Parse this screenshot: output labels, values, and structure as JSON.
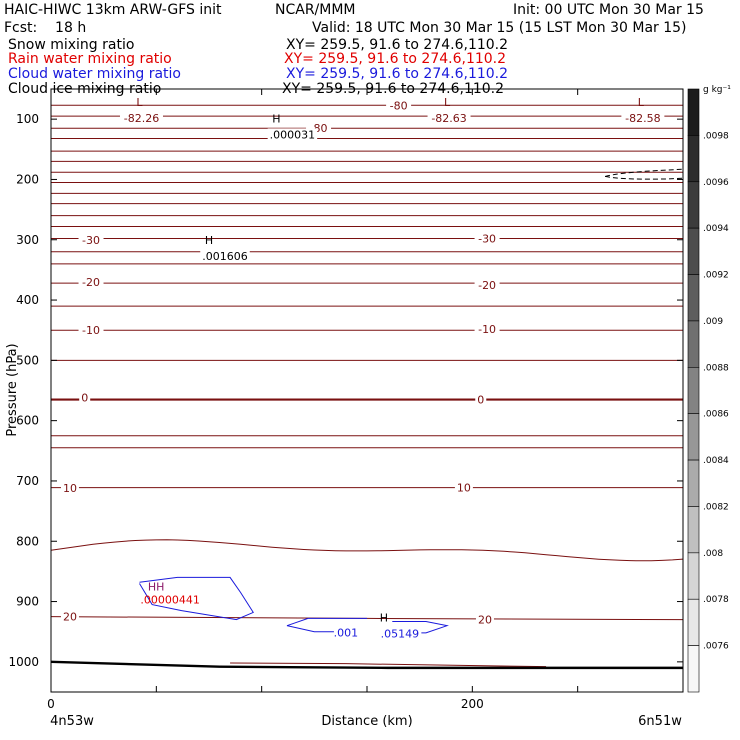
{
  "header": {
    "model": "HAIC-HIWC 13km ARW-GFS init",
    "org": "NCAR/MMM",
    "init": "Init: 00 UTC Mon 30 Mar 15",
    "fcst": "Fcst:    18 h",
    "valid": "Valid: 18 UTC Mon 30 Mar 15 (15 LST Mon 30 Mar 15)"
  },
  "fields": [
    {
      "name": "Snow mixing ratio",
      "xy": "XY= 259.5, 91.6 to 274.6,110.2",
      "color": "#000000"
    },
    {
      "name": "Rain water mixing ratio",
      "xy": "XY= 259.5, 91.6 to 274.6,110.2",
      "color": "#e00000"
    },
    {
      "name": "Cloud water mixing ratio",
      "xy": "XY= 259.5, 91.6 to 274.6,110.2",
      "color": "#1a1adc"
    },
    {
      "name": "Cloud ice mixing ratio",
      "xy": "XY= 259.5, 91.6 to 274.6,110.2",
      "color": "#000000"
    }
  ],
  "chart_data": {
    "type": "contour",
    "xlabel": "Distance (km)",
    "ylabel": "Pressure (hPa)",
    "xlim": [
      0,
      300
    ],
    "ylim": [
      1050,
      50
    ],
    "x_ticks": [
      0,
      200
    ],
    "y_ticks": [
      100,
      200,
      300,
      400,
      500,
      600,
      700,
      800,
      900,
      1000
    ],
    "x_endpoints": {
      "left": "4n53w",
      "right": "6n51w"
    },
    "colorbar": {
      "units": "g kg⁻¹",
      "labels": [
        ".0098",
        ".0096",
        ".0094",
        ".0092",
        ".009",
        ".0088",
        ".0086",
        ".0084",
        ".0082",
        ".008",
        ".0078",
        ".0076"
      ],
      "colors": [
        "#1c1c1c",
        "#2c2c2c",
        "#3c3c3c",
        "#4d4d4d",
        "#5e5e5e",
        "#707070",
        "#838383",
        "#979797",
        "#ababab",
        "#c0c0c0",
        "#d5d5d5",
        "#e8e8e8",
        "#f7f7f7"
      ]
    },
    "colors": {
      "temperature": "#7a1010",
      "cloud_water": "#1a1adc",
      "rain": "#e00000",
      "ground": "#000000"
    },
    "temperature_contour_labels": [
      {
        "text": "-80",
        "x": 127,
        "p": 115
      },
      {
        "text": "-80",
        "x": 165,
        "p": 77
      },
      {
        "text": "-30",
        "x": 19,
        "p": 300
      },
      {
        "text": "-30",
        "x": 207,
        "p": 298
      },
      {
        "text": "-20",
        "x": 19,
        "p": 370
      },
      {
        "text": "-20",
        "x": 207,
        "p": 375
      },
      {
        "text": "-10",
        "x": 19,
        "p": 450
      },
      {
        "text": "-10",
        "x": 207,
        "p": 448
      },
      {
        "text": "0",
        "x": 16,
        "p": 562
      },
      {
        "text": "0",
        "x": 204,
        "p": 565
      },
      {
        "text": "10",
        "x": 9,
        "p": 712
      },
      {
        "text": "10",
        "x": 196,
        "p": 711
      },
      {
        "text": "20",
        "x": 9,
        "p": 925
      },
      {
        "text": "20",
        "x": 206,
        "p": 930
      }
    ],
    "extrema": [
      {
        "letter": "L",
        "value": "-82.26",
        "x": 42,
        "p": 85
      },
      {
        "letter": "H",
        "value": ".000031",
        "x": 107,
        "p": 112
      },
      {
        "letter": "L",
        "value": "-82.63",
        "x": 188,
        "p": 85
      },
      {
        "letter": "L",
        "value": "-82.58",
        "x": 280,
        "p": 85
      },
      {
        "letter": "H",
        "value": ".001606",
        "x": 75,
        "p": 314
      },
      {
        "letter": "H",
        "value": ".05149",
        "x": 158,
        "p": 940
      }
    ],
    "cloud_water_labels": [
      {
        "text": ".001",
        "x": 140,
        "p": 951
      }
    ],
    "rain_extrema": {
      "letters": "HH",
      "value": ".00000441",
      "x": 48,
      "p": 885
    }
  }
}
